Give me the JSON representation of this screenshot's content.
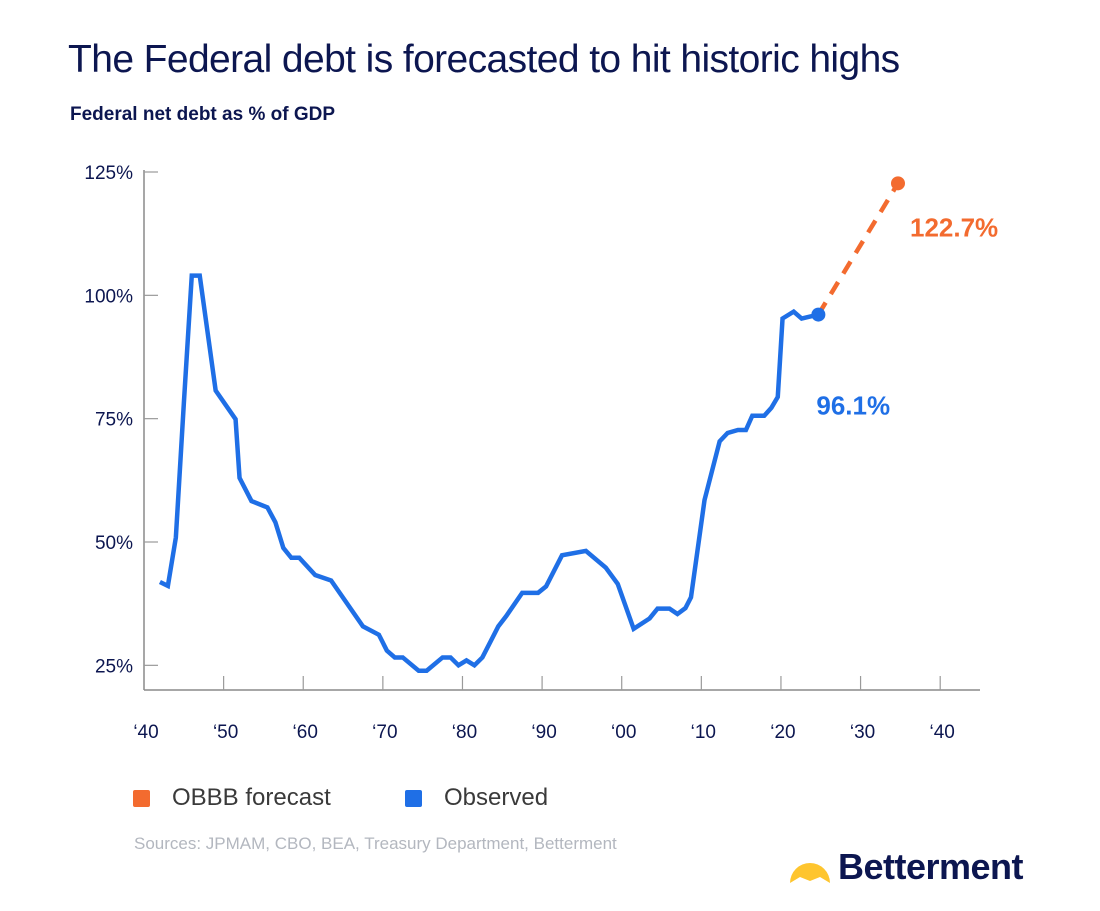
{
  "title": "The Federal debt is forecasted to hit historic highs",
  "subtitle": "Federal net debt as % of GDP",
  "chart_data": {
    "type": "line",
    "title": "The Federal debt is forecasted to hit historic highs",
    "ylabel": "Federal net debt as % of GDP",
    "xlim": [
      1940,
      2045
    ],
    "ylim": [
      20,
      125
    ],
    "grid": false,
    "y_ticks": [
      25,
      50,
      75,
      100,
      125
    ],
    "y_tick_labels": [
      "25%",
      "50%",
      "75%",
      "100%",
      "125%"
    ],
    "x_ticks": [
      1940,
      1950,
      1960,
      1970,
      1980,
      1990,
      2000,
      2010,
      2020,
      2030,
      2040
    ],
    "x_tick_labels": [
      "‘40",
      "‘50",
      "‘60",
      "‘70",
      "‘80",
      "‘90",
      "‘00",
      "‘10",
      "‘20",
      "‘30",
      "‘40"
    ],
    "legend_position": "bottom-left",
    "series": [
      {
        "name": "Observed",
        "color": "#1f6fe6",
        "style": "solid",
        "x": [
          1942,
          1943,
          1944,
          1945,
          1946,
          1947,
          1949,
          1951.5,
          1952,
          1953.5,
          1955.5,
          1956.5,
          1957.5,
          1958.5,
          1959.5,
          1961.5,
          1963.5,
          1967.5,
          1969.5,
          1970.5,
          1971.5,
          1972.5,
          1974.5,
          1975.5,
          1977.5,
          1978.5,
          1979.5,
          1980.5,
          1981.5,
          1982.5,
          1984.5,
          1985.5,
          1987.5,
          1989.5,
          1990.5,
          1992.5,
          1995.5,
          1998,
          1999.5,
          2001.5,
          2003.5,
          2004.5,
          2006,
          2007,
          2008,
          2008.7,
          2010.4,
          2012.3,
          2013.3,
          2014.6,
          2015.6,
          2016.4,
          2017.9,
          2018.8,
          2019.6,
          2020.2,
          2021.6,
          2022.6,
          2024.7
        ],
        "y": [
          41.9,
          41.1,
          50.9,
          78,
          104,
          104,
          80.7,
          74.9,
          63,
          58.3,
          57,
          54,
          48.8,
          46.8,
          46.8,
          43.3,
          42.2,
          32.9,
          31.2,
          28,
          26.6,
          26.6,
          23.9,
          23.9,
          26.6,
          26.6,
          25,
          26,
          25,
          26.6,
          32.9,
          35,
          39.7,
          39.7,
          41,
          47.3,
          48.2,
          44.8,
          41.5,
          32.4,
          34.5,
          36.5,
          36.5,
          35.4,
          36.6,
          38.8,
          58.5,
          70.4,
          72.1,
          72.7,
          72.7,
          75.6,
          75.6,
          77.2,
          79.4,
          95.3,
          96.7,
          95.3,
          96.1
        ],
        "end_label": "96.1%"
      },
      {
        "name": "OBBB forecast",
        "color": "#f36b2f",
        "style": "dashed",
        "x": [
          2024.7,
          2034.7
        ],
        "y": [
          96.1,
          122.7
        ],
        "end_label": "122.7%"
      }
    ]
  },
  "legend": {
    "items": [
      {
        "label": "OBBB forecast",
        "color": "#f36b2f"
      },
      {
        "label": "Observed",
        "color": "#1f6fe6"
      }
    ]
  },
  "sources": "Sources: JPMAM, CBO, BEA, Treasury Department, Betterment",
  "logo": {
    "text": "Betterment",
    "icon_color": "#fec52e"
  }
}
